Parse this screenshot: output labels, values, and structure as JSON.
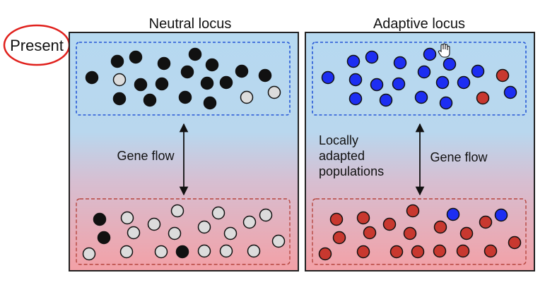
{
  "present_label": "Present",
  "panels": [
    {
      "id": "neutral",
      "title": "Neutral locus",
      "gene_flow_label": "Gene flow",
      "side_label_lines": [],
      "top_population": {
        "dots": [
          [
            "black",
            130,
            110
          ],
          [
            "black",
            166,
            87
          ],
          [
            "black",
            192,
            81
          ],
          [
            "black",
            232,
            90
          ],
          [
            "black",
            276,
            77
          ],
          [
            "black",
            300,
            92
          ],
          [
            "black",
            342,
            101
          ],
          [
            "black",
            375,
            107
          ],
          [
            "grey",
            169,
            113
          ],
          [
            "black",
            199,
            120
          ],
          [
            "black",
            229,
            119
          ],
          [
            "black",
            265,
            102
          ],
          [
            "black",
            293,
            118
          ],
          [
            "black",
            320,
            117
          ],
          [
            "black",
            169,
            140
          ],
          [
            "black",
            212,
            142
          ],
          [
            "black",
            262,
            138
          ],
          [
            "black",
            297,
            146
          ],
          [
            "grey",
            349,
            138
          ],
          [
            "grey",
            388,
            131
          ]
        ]
      },
      "bottom_population": {
        "dots": [
          [
            "black",
            141,
            311
          ],
          [
            "grey",
            180,
            309
          ],
          [
            "grey",
            251,
            299
          ],
          [
            "grey",
            309,
            302
          ],
          [
            "grey",
            353,
            315
          ],
          [
            "grey",
            376,
            305
          ],
          [
            "black",
            147,
            337
          ],
          [
            "grey",
            189,
            330
          ],
          [
            "grey",
            218,
            318
          ],
          [
            "grey",
            247,
            331
          ],
          [
            "grey",
            289,
            322
          ],
          [
            "grey",
            326,
            331
          ],
          [
            "grey",
            394,
            342
          ],
          [
            "grey",
            126,
            360
          ],
          [
            "grey",
            179,
            357
          ],
          [
            "grey",
            228,
            357
          ],
          [
            "black",
            258,
            357
          ],
          [
            "grey",
            289,
            356
          ],
          [
            "grey",
            320,
            356
          ],
          [
            "grey",
            359,
            356
          ]
        ]
      }
    },
    {
      "id": "adaptive",
      "title": "Adaptive locus",
      "gene_flow_label": "Gene flow",
      "side_label_lines": [
        "Locally",
        "adapted",
        "populations"
      ],
      "top_population": {
        "dots": [
          [
            "blue",
            464,
            110
          ],
          [
            "blue",
            500,
            87
          ],
          [
            "blue",
            526,
            81
          ],
          [
            "blue",
            566,
            89
          ],
          [
            "blue",
            608,
            77
          ],
          [
            "blue",
            636,
            91
          ],
          [
            "blue",
            676,
            101
          ],
          [
            "red",
            711,
            107
          ],
          [
            "blue",
            503,
            113
          ],
          [
            "blue",
            533,
            120
          ],
          [
            "blue",
            564,
            119
          ],
          [
            "blue",
            600,
            102
          ],
          [
            "blue",
            626,
            117
          ],
          [
            "blue",
            656,
            117
          ],
          [
            "blue",
            503,
            140
          ],
          [
            "blue",
            546,
            142
          ],
          [
            "blue",
            596,
            138
          ],
          [
            "blue",
            631,
            146
          ],
          [
            "red",
            683,
            139
          ],
          [
            "blue",
            722,
            131
          ]
        ]
      },
      "bottom_population": {
        "dots": [
          [
            "red",
            476,
            311
          ],
          [
            "red",
            514,
            309
          ],
          [
            "red",
            584,
            299
          ],
          [
            "blue",
            641,
            304
          ],
          [
            "red",
            687,
            315
          ],
          [
            "blue",
            709,
            305
          ],
          [
            "red",
            480,
            337
          ],
          [
            "red",
            523,
            330
          ],
          [
            "red",
            551,
            318
          ],
          [
            "red",
            580,
            331
          ],
          [
            "red",
            623,
            322
          ],
          [
            "red",
            660,
            331
          ],
          [
            "red",
            728,
            344
          ],
          [
            "red",
            460,
            360
          ],
          [
            "red",
            514,
            357
          ],
          [
            "red",
            561,
            357
          ],
          [
            "red",
            591,
            357
          ],
          [
            "red",
            622,
            356
          ],
          [
            "red",
            655,
            356
          ],
          [
            "red",
            694,
            356
          ]
        ]
      }
    }
  ],
  "colors": {
    "black": "#111111",
    "grey": "#dcdcdc",
    "blue": "#1d2ef2",
    "red": "#c8382f",
    "panel_top": "#b6d9f0",
    "panel_bottom": "#f3a8ad",
    "top_box_border": "#2456d6",
    "bottom_box_border": "#b5463f",
    "present_circle": "#e0201c"
  },
  "cursor_icon": "hand-cursor-icon"
}
